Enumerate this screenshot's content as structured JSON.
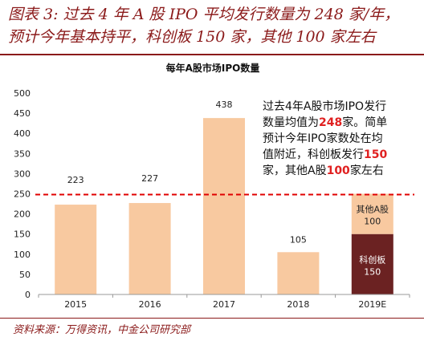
{
  "figure": {
    "title_line1": "图表 3:  过去 4 年 A 股 IPO 平均发行数量为 248 家/年，",
    "title_line2": "预计今年基本持平，科创板 150 家，其他 100 家左右",
    "source": "资料来源：万得资讯，中金公司研究部"
  },
  "colors": {
    "bar": "#f8c9a0",
    "star_market": "#6b2222",
    "reference_line": "#e00000",
    "title": "#8b1a1a"
  },
  "chart_data": {
    "type": "bar",
    "title": "每年A股市场IPO数量",
    "categories": [
      "2015",
      "2016",
      "2017",
      "2018",
      "2019E"
    ],
    "values": [
      223,
      227,
      438,
      105,
      250
    ],
    "value_labels": [
      "223",
      "227",
      "438",
      "105",
      ""
    ],
    "stack_2019E": [
      {
        "name": "科创板",
        "value": 150,
        "label": "150"
      },
      {
        "name": "其他A股",
        "value": 100,
        "label": "100"
      }
    ],
    "reference_line": {
      "value": 248,
      "style": "dashed"
    },
    "ylim": [
      0,
      500
    ],
    "yticks": [
      "0",
      "50",
      "100",
      "150",
      "200",
      "250",
      "300",
      "350",
      "400",
      "450",
      "500"
    ],
    "annotation": [
      [
        {
          "t": "过去4年A股市场IPO发行"
        }
      ],
      [
        {
          "t": "数量均值为"
        },
        {
          "t": "248",
          "hl": true
        },
        {
          "t": "家。简单"
        }
      ],
      [
        {
          "t": "预计今年IPO家数处在均"
        }
      ],
      [
        {
          "t": "值附近，科创板发行"
        },
        {
          "t": "150",
          "hl": true
        }
      ],
      [
        {
          "t": "家，其他A股"
        },
        {
          "t": "100",
          "hl": true
        },
        {
          "t": "家左右"
        }
      ]
    ]
  }
}
